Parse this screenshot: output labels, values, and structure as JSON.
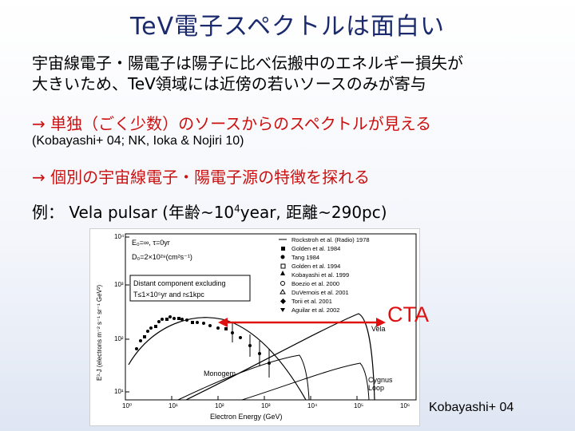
{
  "slide": {
    "title": "TeV電子スペクトルは面白い",
    "body_line1": "宇宙線電子・陽電子は陽子に比べ伝搬中のエネルギー損失が",
    "body_line2": "大きいため、TeV領域には近傍の若いソースのみが寄与",
    "bullet1": "→ 単独（ごく少数）のソースからのスペクトルが見える",
    "reference1": "(Kobayashi+ 04; NK, Ioka & Nojiri 10)",
    "bullet2": "→ 個別の宇宙線電子・陽電子源の特徴を探れる",
    "example_prefix": "例： Vela pulsar (年齢~10",
    "example_sup": "4",
    "example_suffix": "year, 距離~290pc)"
  },
  "figure": {
    "cta_label": "CTA",
    "caption": "Kobayashi+ 04",
    "params_line1": "E₀=∞,  τ=0yr",
    "params_line2": "D₀=2×10²⁹(cm²s⁻¹)",
    "annotation_line1": "Distant component excluding",
    "annotation_line2": "T≤1×10⁵yr and r≤1kpc",
    "curve_labels": {
      "vela": "Vela",
      "monogem": "Monogem",
      "cygnus_line1": "Cygnus",
      "cygnus_line2": "Loop"
    },
    "legend": [
      "Rockstroh et al. (Radio) 1978",
      "Golden et al. 1984",
      "Tang 1984",
      "Golden et al. 1994",
      "Kobayashi et al. 1999",
      "Boezio et al. 2000",
      "DuVernois et al. 2001",
      "Torii et al. 2001",
      "Aguilar et al. 2002"
    ],
    "axis": {
      "xlabel": "Electron Energy (GeV)",
      "ylabel": "E³·J (electrons m⁻² s⁻¹ sr⁻¹ GeV²)",
      "x_ticks": [
        "10⁰",
        "10¹",
        "10²",
        "10³",
        "10⁴",
        "10⁵",
        "10⁶"
      ],
      "y_ticks": [
        "10⁴",
        "10³",
        "10²",
        "10¹"
      ]
    }
  },
  "colors": {
    "title": "#1a2a6c",
    "accent_red": "#cc1010",
    "cta_red": "#e01010"
  }
}
